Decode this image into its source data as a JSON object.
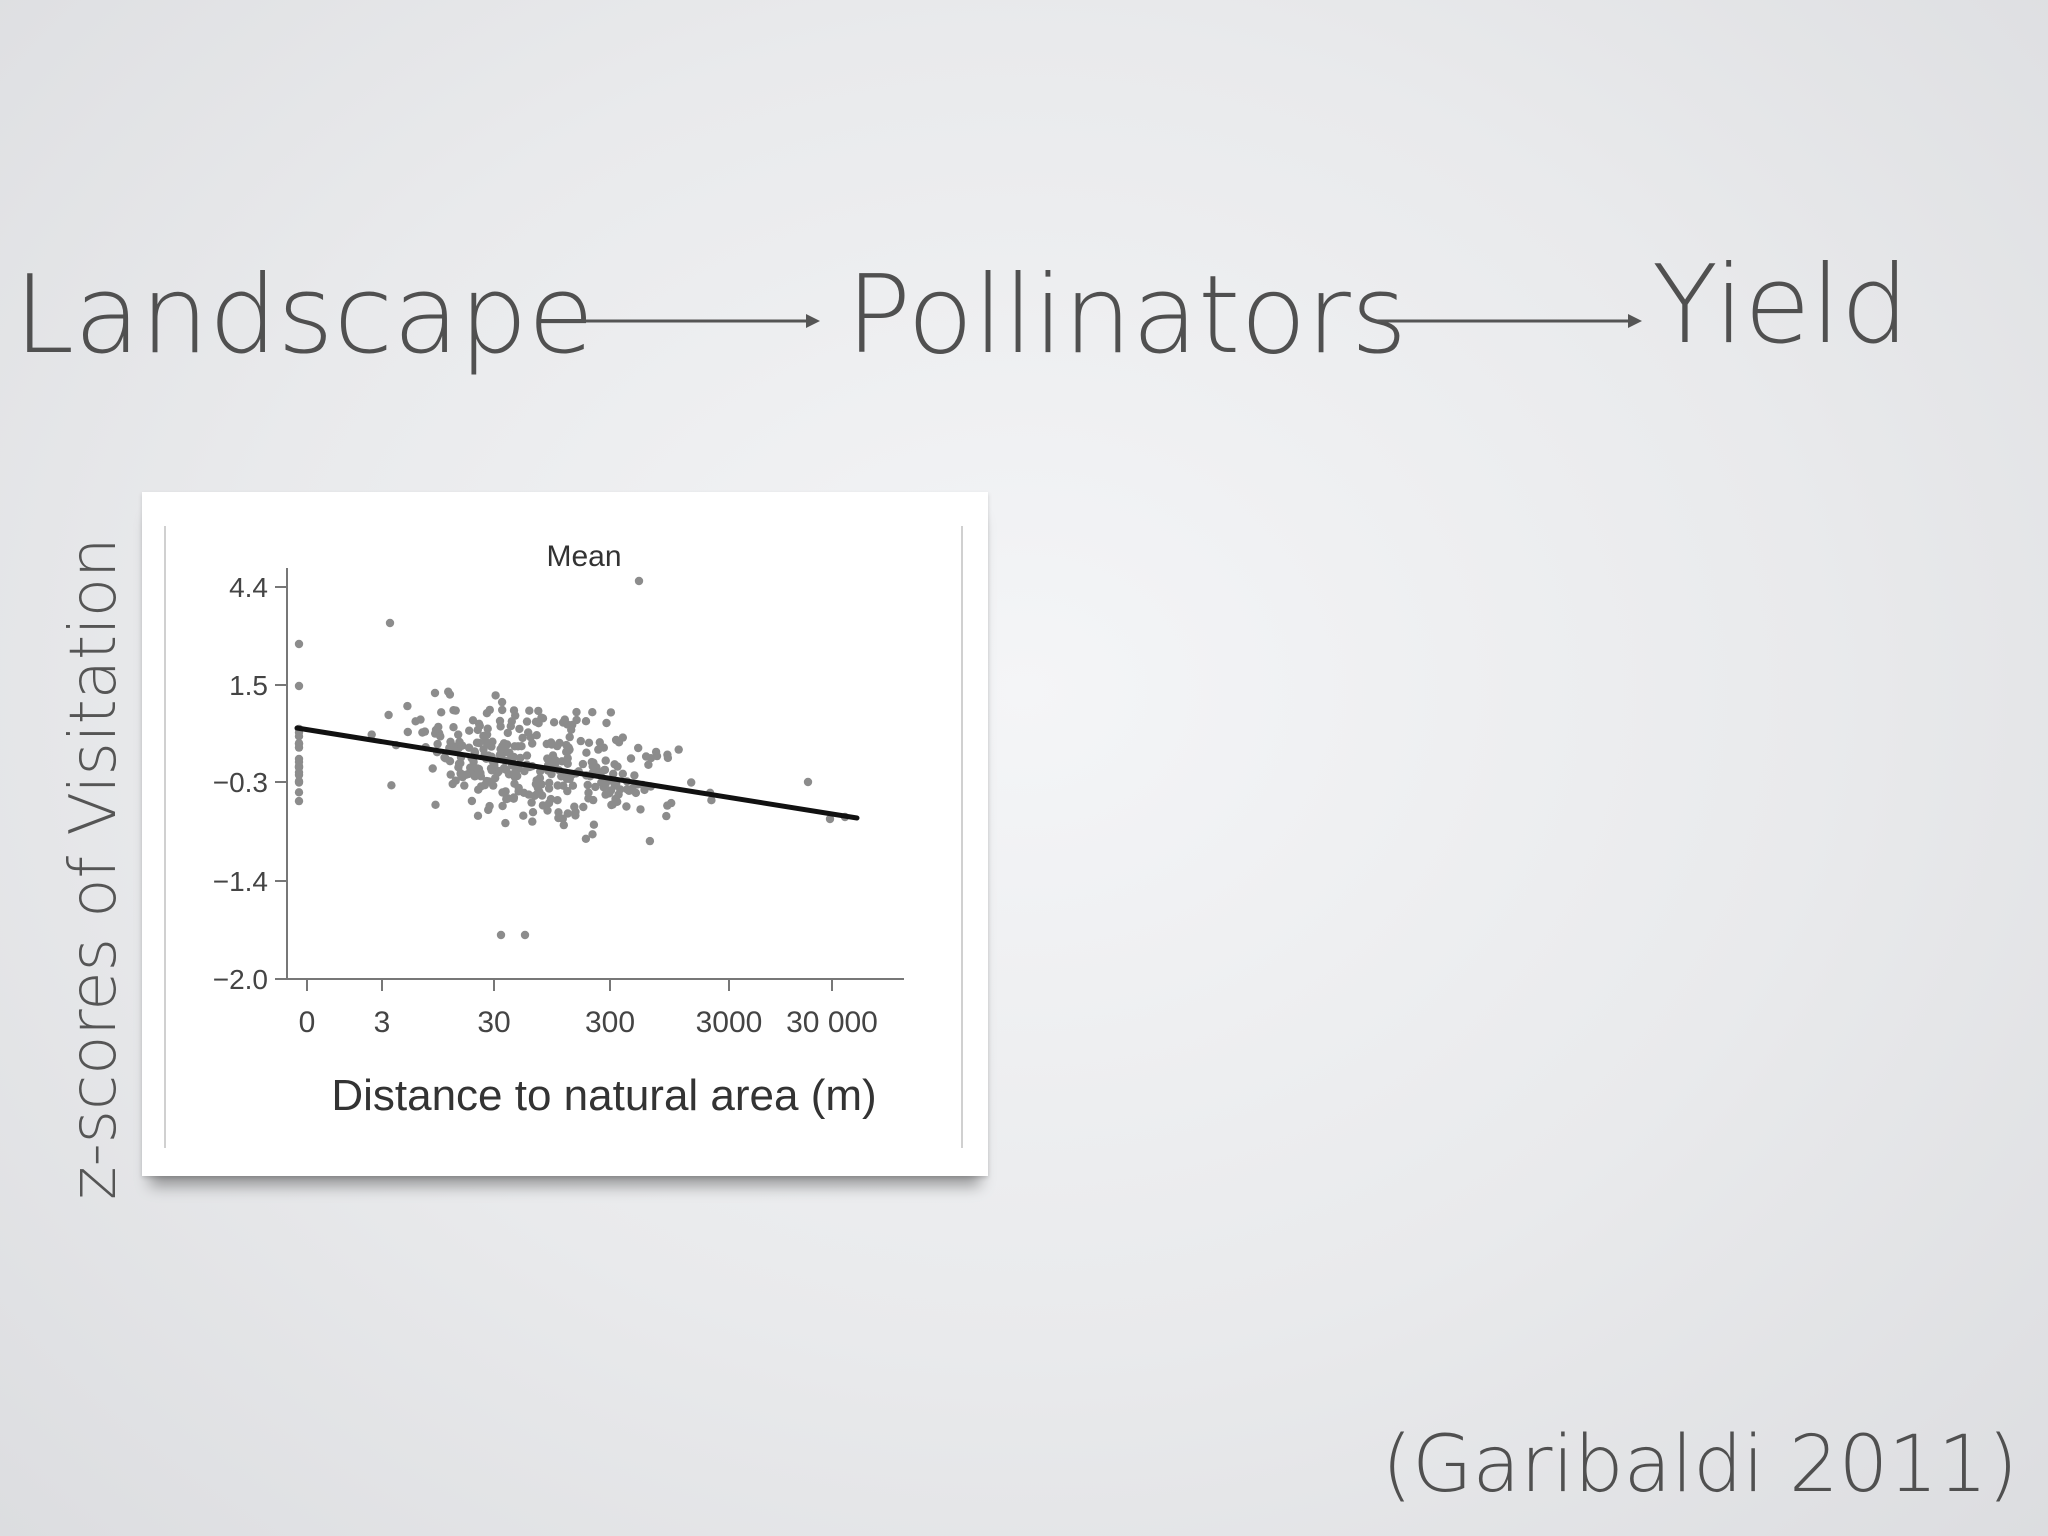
{
  "flow": {
    "step1": "Landscape",
    "step2": "Pollinators",
    "step3": "Yield"
  },
  "y_axis_label": "z-scores of Visitation",
  "citation": "(Garibaldi 2011)",
  "chart_data": {
    "type": "scatter",
    "title": "Mean",
    "xlabel": "Distance to natural area (m)",
    "ylabel": "",
    "x_tick_labels": [
      "0",
      "3",
      "30",
      "300",
      "3000",
      "30 000"
    ],
    "y_tick_labels": [
      "4.4",
      "1.5",
      "−0.3",
      "−1.4",
      "−2.0"
    ],
    "xlim": [
      0,
      30000
    ],
    "ylim": [
      -2.0,
      4.4
    ],
    "trend_line": {
      "x": [
        0,
        30000
      ],
      "y": [
        0.9,
        -0.85
      ]
    },
    "point_color": "#8c8c8c",
    "line_color": "#111111"
  }
}
